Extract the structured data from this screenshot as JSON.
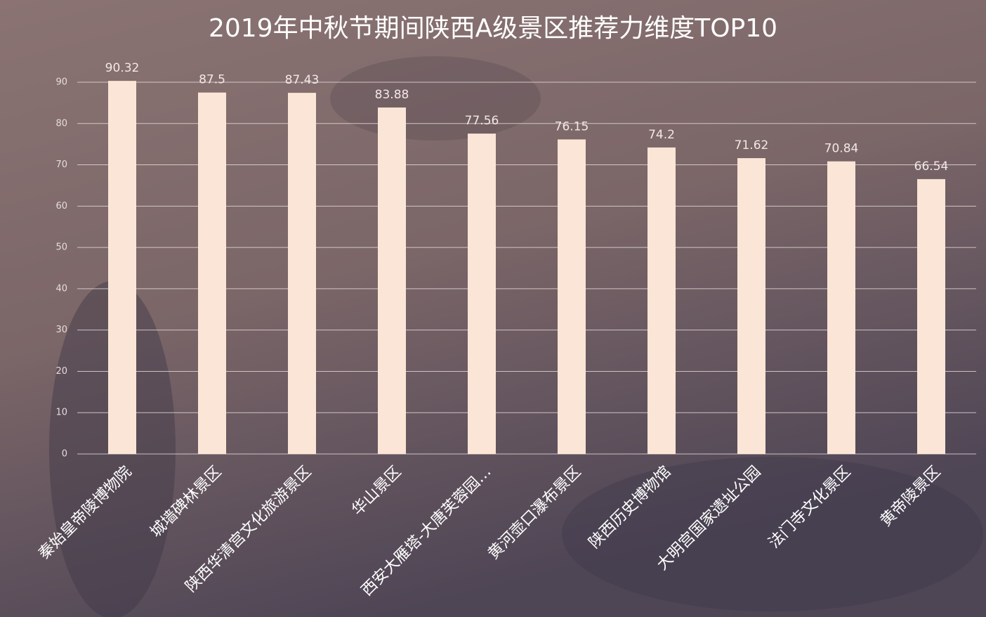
{
  "chart_data": {
    "type": "bar",
    "title": "2019年中秋节期间陕西A级景区推荐力维度TOP10",
    "categories": [
      "秦始皇帝陵博物院",
      "城墙碑林景区",
      "陕西华清宫文化旅游景区",
      "华山景区",
      "西安大雁塔-大唐芙蓉园…",
      "黄河壶口瀑布景区",
      "陕西历史博物馆",
      "大明宫国家遗址公园",
      "法门寺文化景区",
      "黄帝陵景区"
    ],
    "values": [
      90.32,
      87.5,
      87.43,
      83.88,
      77.56,
      76.15,
      74.2,
      71.62,
      70.84,
      66.54
    ],
    "color": "#fbe5d6",
    "ylim": [
      0,
      90
    ],
    "yticks": [
      0,
      10,
      20,
      30,
      40,
      50,
      60,
      70,
      80,
      90
    ],
    "grid": true
  }
}
